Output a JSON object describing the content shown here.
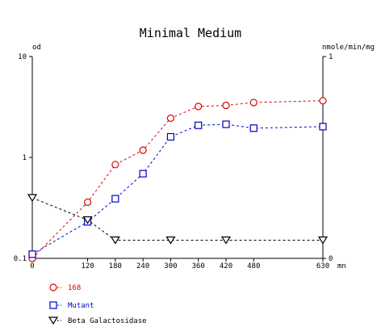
{
  "chart_data": {
    "type": "line",
    "title": "Minimal Medium",
    "x_unit": "mn",
    "x_ticks": [
      0,
      120,
      180,
      240,
      300,
      360,
      420,
      480,
      630
    ],
    "xlim": [
      0,
      630
    ],
    "left_axis": {
      "label": "od",
      "scale": "log",
      "ylim": [
        0.1,
        10
      ],
      "ticks": [
        {
          "value": 0.1,
          "label": "0.1"
        },
        {
          "value": 1,
          "label": "1"
        },
        {
          "value": 10,
          "label": "10"
        }
      ]
    },
    "right_axis": {
      "label": "nmole/min/mg",
      "scale": "linear",
      "ylim": [
        0,
        1
      ],
      "ticks": [
        {
          "value": 0,
          "label": "0"
        },
        {
          "value": 1,
          "label": "1"
        }
      ]
    },
    "series": [
      {
        "name": "168",
        "axis": "left",
        "marker": "circle",
        "color": "#dd0000",
        "x": [
          0,
          120,
          180,
          240,
          300,
          360,
          420,
          480,
          630
        ],
        "y": [
          0.1,
          0.36,
          0.85,
          1.18,
          2.45,
          3.2,
          3.28,
          3.5,
          3.65
        ]
      },
      {
        "name": "Mutant",
        "axis": "left",
        "marker": "square",
        "color": "#0000cc",
        "x": [
          0,
          120,
          180,
          240,
          300,
          360,
          420,
          480,
          630
        ],
        "y": [
          0.11,
          0.23,
          0.39,
          0.69,
          1.6,
          2.08,
          2.13,
          1.95,
          2.02
        ]
      },
      {
        "name": "Beta Galactosidase",
        "axis": "right",
        "marker": "triangle-down",
        "color": "#000000",
        "x": [
          0,
          120,
          180,
          300,
          420,
          630
        ],
        "y": [
          0.3,
          0.19,
          0.09,
          0.09,
          0.09,
          0.09
        ]
      }
    ],
    "legend_position": "bottom-left",
    "grid": false
  }
}
